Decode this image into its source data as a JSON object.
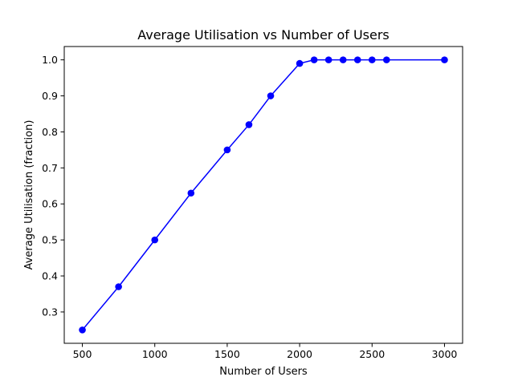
{
  "chart_data": {
    "type": "line",
    "title": "Average Utilisation vs Number of Users",
    "xlabel": "Number of Users",
    "ylabel": "Average Utilisation (fraction)",
    "xlim": [
      375,
      3125
    ],
    "ylim": [
      0.213,
      1.037
    ],
    "xticks": [
      500,
      1000,
      1500,
      2000,
      2500,
      3000
    ],
    "yticks": [
      0.3,
      0.4,
      0.5,
      0.6,
      0.7,
      0.8,
      0.9,
      1.0
    ],
    "xtick_labels": [
      "500",
      "1000",
      "1500",
      "2000",
      "2500",
      "3000"
    ],
    "ytick_labels": [
      "0.3",
      "0.4",
      "0.5",
      "0.6",
      "0.7",
      "0.8",
      "0.9",
      "1.0"
    ],
    "grid": false,
    "series": [
      {
        "color": "#0000ff",
        "marker": "circle",
        "x": [
          500,
          750,
          1000,
          1250,
          1500,
          1650,
          1800,
          2000,
          2100,
          2200,
          2300,
          2400,
          2500,
          2600,
          3000
        ],
        "y": [
          0.25,
          0.37,
          0.5,
          0.63,
          0.75,
          0.82,
          0.9,
          0.99,
          1.0,
          1.0,
          1.0,
          1.0,
          1.0,
          1.0,
          1.0
        ]
      }
    ]
  }
}
